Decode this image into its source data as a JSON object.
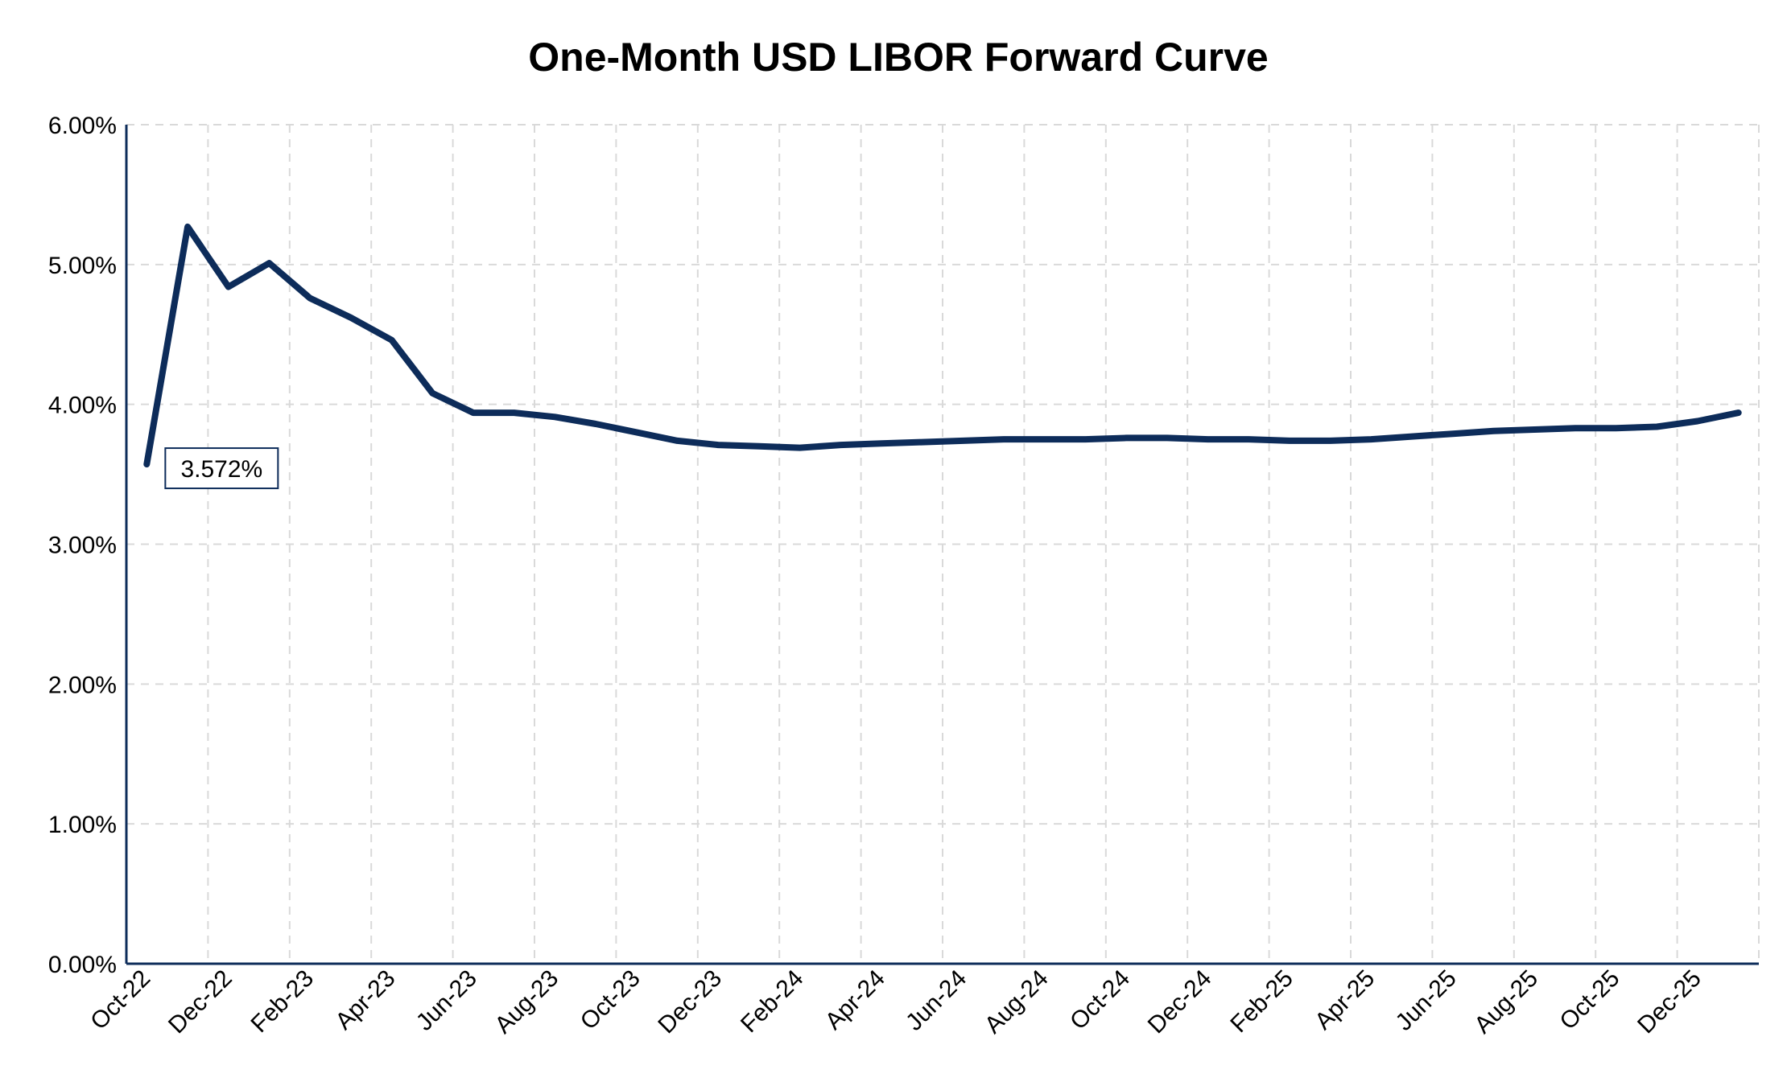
{
  "chart_data": {
    "type": "line",
    "title": "One-Month USD LIBOR Forward Curve",
    "xlabel": "",
    "ylabel": "",
    "ylim": [
      0,
      6
    ],
    "y_ticks": [
      "0.00%",
      "1.00%",
      "2.00%",
      "3.00%",
      "4.00%",
      "5.00%",
      "6.00%"
    ],
    "x_tick_labels": [
      "Oct-22",
      "Dec-22",
      "Feb-23",
      "Apr-23",
      "Jun-23",
      "Aug-23",
      "Oct-23",
      "Dec-23",
      "Feb-24",
      "Apr-24",
      "Jun-24",
      "Aug-24",
      "Oct-24",
      "Dec-24",
      "Feb-25",
      "Apr-25",
      "Jun-25",
      "Aug-25",
      "Oct-25",
      "Dec-25"
    ],
    "x": [
      "Oct-22",
      "Nov-22",
      "Dec-22",
      "Jan-23",
      "Feb-23",
      "Mar-23",
      "Apr-23",
      "May-23",
      "Jun-23",
      "Jul-23",
      "Aug-23",
      "Sep-23",
      "Oct-23",
      "Nov-23",
      "Dec-23",
      "Jan-24",
      "Feb-24",
      "Mar-24",
      "Apr-24",
      "May-24",
      "Jun-24",
      "Jul-24",
      "Aug-24",
      "Sep-24",
      "Oct-24",
      "Nov-24",
      "Dec-24",
      "Jan-25",
      "Feb-25",
      "Mar-25",
      "Apr-25",
      "May-25",
      "Jun-25",
      "Jul-25",
      "Aug-25",
      "Sep-25",
      "Oct-25",
      "Nov-25",
      "Dec-25",
      "Jan-26"
    ],
    "series": [
      {
        "values": [
          3.572,
          5.27,
          4.84,
          5.01,
          4.76,
          4.62,
          4.46,
          4.08,
          3.94,
          3.94,
          3.91,
          3.86,
          3.8,
          3.74,
          3.71,
          3.7,
          3.69,
          3.71,
          3.72,
          3.73,
          3.74,
          3.75,
          3.75,
          3.75,
          3.76,
          3.76,
          3.75,
          3.75,
          3.74,
          3.74,
          3.75,
          3.77,
          3.79,
          3.81,
          3.82,
          3.83,
          3.83,
          3.84,
          3.88,
          3.94
        ],
        "color": "#0d2c5a"
      }
    ],
    "annotations": [
      {
        "text": "3.572%",
        "target": "Oct-22"
      }
    ],
    "grid": true,
    "legend": "none",
    "colors": {
      "line": "#0d2c5a",
      "axis": "#0d2c5a",
      "grid": "#d9d9d9",
      "annotation_border": "#0d2c5a"
    }
  }
}
